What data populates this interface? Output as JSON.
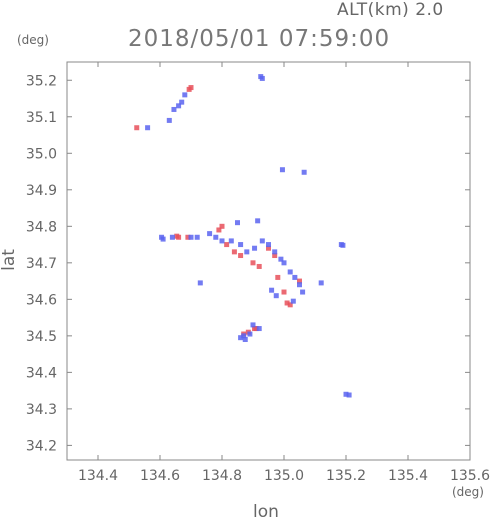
{
  "header": {
    "altitude_label": "ALT(km) 2.0",
    "timestamp": "2018/05/01 07:59:00",
    "y_unit": "(deg)",
    "x_unit": "(deg)"
  },
  "chart_data": {
    "type": "scatter",
    "title": "2018/05/01 07:59:00",
    "xlabel": "lon",
    "ylabel": "lat",
    "xlim": [
      134.3,
      135.6
    ],
    "ylim": [
      34.16,
      35.25
    ],
    "x_ticks": [
      "134.4",
      "134.6",
      "134.8",
      "135.0",
      "135.2",
      "135.4",
      "135.6"
    ],
    "y_ticks": [
      "34.2",
      "34.3",
      "34.4",
      "34.5",
      "34.6",
      "34.7",
      "34.8",
      "34.9",
      "35.0",
      "35.1",
      "35.2"
    ],
    "grid": false,
    "colors": {
      "positive": "#e8505a",
      "negative": "#5a64f0",
      "axis": "#888888"
    },
    "series": [
      {
        "name": "",
        "color": "#e8505a",
        "points": [
          [
            134.525,
            35.07
          ],
          [
            134.694,
            35.175
          ],
          [
            134.7,
            35.18
          ],
          [
            134.654,
            34.773
          ],
          [
            134.66,
            34.77
          ],
          [
            134.69,
            34.77
          ],
          [
            134.79,
            34.79
          ],
          [
            134.8,
            34.8
          ],
          [
            134.815,
            34.75
          ],
          [
            134.84,
            34.73
          ],
          [
            134.86,
            34.72
          ],
          [
            134.9,
            34.7
          ],
          [
            134.92,
            34.69
          ],
          [
            134.95,
            34.74
          ],
          [
            134.97,
            34.72
          ],
          [
            134.98,
            34.66
          ],
          [
            135.0,
            34.62
          ],
          [
            135.01,
            34.59
          ],
          [
            135.02,
            34.585
          ],
          [
            135.05,
            34.65
          ],
          [
            134.905,
            34.52
          ],
          [
            134.91,
            34.52
          ],
          [
            134.885,
            34.51
          ],
          [
            134.87,
            34.505
          ]
        ]
      },
      {
        "name": "",
        "color": "#5a64f0",
        "points": [
          [
            134.925,
            35.21
          ],
          [
            134.93,
            35.205
          ],
          [
            134.68,
            35.16
          ],
          [
            134.67,
            35.14
          ],
          [
            134.66,
            35.13
          ],
          [
            134.645,
            35.12
          ],
          [
            134.63,
            35.09
          ],
          [
            134.605,
            34.77
          ],
          [
            134.61,
            34.765
          ],
          [
            134.64,
            34.77
          ],
          [
            134.7,
            34.77
          ],
          [
            134.72,
            34.77
          ],
          [
            134.76,
            34.78
          ],
          [
            134.78,
            34.77
          ],
          [
            134.8,
            34.76
          ],
          [
            134.83,
            34.76
          ],
          [
            134.86,
            34.75
          ],
          [
            134.88,
            34.73
          ],
          [
            134.905,
            34.74
          ],
          [
            134.93,
            34.76
          ],
          [
            134.95,
            34.75
          ],
          [
            134.97,
            34.73
          ],
          [
            134.99,
            34.71
          ],
          [
            135.0,
            34.7
          ],
          [
            135.02,
            34.675
          ],
          [
            135.035,
            34.66
          ],
          [
            135.05,
            34.64
          ],
          [
            135.06,
            34.62
          ],
          [
            134.96,
            34.625
          ],
          [
            134.975,
            34.61
          ],
          [
            135.03,
            34.595
          ],
          [
            134.85,
            34.81
          ],
          [
            135.185,
            34.75
          ],
          [
            135.19,
            34.748
          ],
          [
            135.2,
            34.34
          ],
          [
            135.21,
            34.338
          ],
          [
            134.87,
            34.5
          ],
          [
            134.86,
            34.495
          ],
          [
            134.875,
            34.49
          ],
          [
            134.89,
            34.505
          ],
          [
            134.9,
            34.53
          ],
          [
            134.92,
            34.52
          ],
          [
            134.73,
            34.645
          ],
          [
            135.12,
            34.645
          ],
          [
            134.995,
            34.955
          ],
          [
            135.065,
            34.948
          ],
          [
            134.56,
            35.07
          ],
          [
            134.915,
            34.815
          ]
        ]
      }
    ]
  }
}
